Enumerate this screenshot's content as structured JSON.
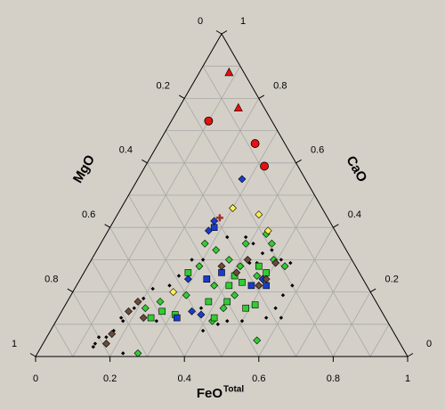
{
  "chart_data": {
    "type": "ternary",
    "axes": {
      "bottom": {
        "label": "FeO",
        "label_sup": "Total",
        "ticks": [
          0,
          0.2,
          0.4,
          0.6,
          0.8,
          1
        ]
      },
      "left": {
        "label": "MgO",
        "ticks": [
          0,
          0.2,
          0.4,
          0.6,
          0.8,
          1
        ]
      },
      "right": {
        "label": "CaO",
        "ticks": [
          0,
          0.2,
          0.4,
          0.6,
          0.8,
          1
        ]
      }
    },
    "gridlines": [
      0.1,
      0.2,
      0.3,
      0.4,
      0.5,
      0.6,
      0.7,
      0.8,
      0.9
    ],
    "series": [
      {
        "marker": "circle",
        "color": "#e81010",
        "feo": [
          0.1,
          0.26,
          0.32
        ],
        "cao": [
          0.73,
          0.66,
          0.59
        ]
      },
      {
        "marker": "triangle",
        "color": "#e81010",
        "feo": [
          0.08,
          0.16
        ],
        "cao": [
          0.88,
          0.77
        ]
      },
      {
        "marker": "small-diamond",
        "color": "#000000",
        "feo": [
          0.14,
          0.14,
          0.16,
          0.17,
          0.18,
          0.19,
          0.2,
          0.21,
          0.17,
          0.14,
          0.23,
          0.27,
          0.25,
          0.26,
          0.27,
          0.3,
          0.33,
          0.38,
          0.41,
          0.45,
          0.47,
          0.51,
          0.54,
          0.58,
          0.57,
          0.57,
          0.56,
          0.6,
          0.44,
          0.46,
          0.5,
          0.41,
          0.37,
          0.43,
          0.45
        ],
        "cao": [
          0.04,
          0.06,
          0.06,
          0.08,
          0.11,
          0.15,
          0.18,
          0.21,
          0.12,
          0.03,
          0.01,
          0.11,
          0.22,
          0.25,
          0.3,
          0.3,
          0.37,
          0.37,
          0.35,
          0.32,
          0.33,
          0.3,
          0.29,
          0.22,
          0.19,
          0.15,
          0.12,
          0.12,
          0.1,
          0.11,
          0.11,
          0.08,
          0.15,
          0.29,
          0.29
        ]
      },
      {
        "marker": "diamond",
        "color": "#33cc33",
        "feo": [
          0.43,
          0.46,
          0.32,
          0.37,
          0.41,
          0.47,
          0.3,
          0.37,
          0.31,
          0.22,
          0.27,
          0.57,
          0.42,
          0.43,
          0.25,
          0.44,
          0.49,
          0.53,
          0.39,
          0.28
        ],
        "cao": [
          0.38,
          0.35,
          0.33,
          0.3,
          0.28,
          0.25,
          0.28,
          0.22,
          0.19,
          0.15,
          0.01,
          0.05,
          0.11,
          0.15,
          0.17,
          0.19,
          0.3,
          0.28,
          0.35,
          0.35
        ]
      },
      {
        "marker": "square",
        "color": "#33cc33",
        "feo": [
          0.28,
          0.34,
          0.41,
          0.44,
          0.46,
          0.49,
          0.43,
          0.51,
          0.49,
          0.27,
          0.25,
          0.31,
          0.42,
          0.38,
          0.41
        ],
        "cao": [
          0.26,
          0.24,
          0.22,
          0.23,
          0.28,
          0.26,
          0.17,
          0.16,
          0.15,
          0.14,
          0.12,
          0.13,
          0.12,
          0.17,
          0.25
        ]
      },
      {
        "marker": "square",
        "color": "#1a3ccc",
        "feo": [
          0.34,
          0.37,
          0.28,
          0.32,
          0.47,
          0.51
        ],
        "cao": [
          0.24,
          0.26,
          0.4,
          0.12,
          0.22,
          0.22
        ]
      },
      {
        "marker": "diamond",
        "color": "#1a3ccc",
        "feo": [
          0.28,
          0.27,
          0.27,
          0.29,
          0.38,
          0.35,
          0.49
        ],
        "cao": [
          0.55,
          0.39,
          0.42,
          0.24,
          0.13,
          0.14,
          0.24
        ]
      },
      {
        "marker": "diamond",
        "color": "#ffee55",
        "feo": [
          0.3,
          0.38,
          0.27,
          0.43
        ],
        "cao": [
          0.46,
          0.44,
          0.2,
          0.39
        ]
      },
      {
        "marker": "diamond",
        "color": "#6b4a3a",
        "feo": [
          0.18,
          0.19,
          0.17,
          0.17,
          0.36,
          0.41,
          0.49,
          0.5,
          0.5,
          0.42,
          0.23
        ],
        "cao": [
          0.14,
          0.17,
          0.07,
          0.04,
          0.28,
          0.26,
          0.22,
          0.24,
          0.29,
          0.3,
          0.12
        ]
      },
      {
        "marker": "cross",
        "color": "#a03030",
        "feo": [
          0.28
        ],
        "cao": [
          0.43
        ]
      }
    ]
  }
}
